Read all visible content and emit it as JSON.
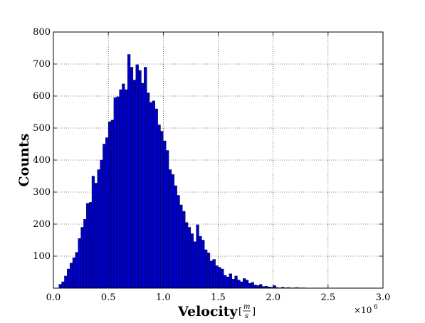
{
  "chart_data": {
    "type": "bar",
    "title": "",
    "xlabel": "Velocity",
    "xlabel_unit": {
      "numerator": "m",
      "denominator": "s"
    },
    "ylabel": "Counts",
    "x_offset_label": "×10",
    "x_offset_exponent": "6",
    "x_unit_multiplier": 1000000,
    "xlim": [
      0.0,
      3.0
    ],
    "ylim": [
      0,
      800
    ],
    "xticks": [
      "0.0",
      "0.5",
      "1.0",
      "1.5",
      "2.0",
      "2.5",
      "3.0"
    ],
    "yticks": [
      "100",
      "200",
      "300",
      "400",
      "500",
      "600",
      "700",
      "800"
    ],
    "grid": true,
    "grid_style": "dotted",
    "bar_color": "#0000cc",
    "bar_edge_color": "#000000",
    "bin_width": 0.025,
    "bin_start": 0.05,
    "values": [
      12,
      20,
      38,
      60,
      78,
      95,
      112,
      155,
      190,
      215,
      265,
      268,
      350,
      328,
      370,
      400,
      450,
      470,
      520,
      525,
      595,
      598,
      620,
      638,
      620,
      730,
      690,
      650,
      698,
      680,
      640,
      690,
      610,
      580,
      585,
      560,
      510,
      490,
      460,
      430,
      370,
      355,
      320,
      290,
      260,
      240,
      205,
      190,
      170,
      145,
      198,
      162,
      150,
      120,
      110,
      85,
      90,
      70,
      65,
      60,
      40,
      35,
      45,
      28,
      38,
      25,
      20,
      30,
      25,
      15,
      18,
      10,
      8,
      12,
      5,
      6,
      4,
      3,
      8,
      2,
      1,
      3,
      1,
      2,
      1,
      1,
      2,
      1,
      1,
      1
    ]
  }
}
